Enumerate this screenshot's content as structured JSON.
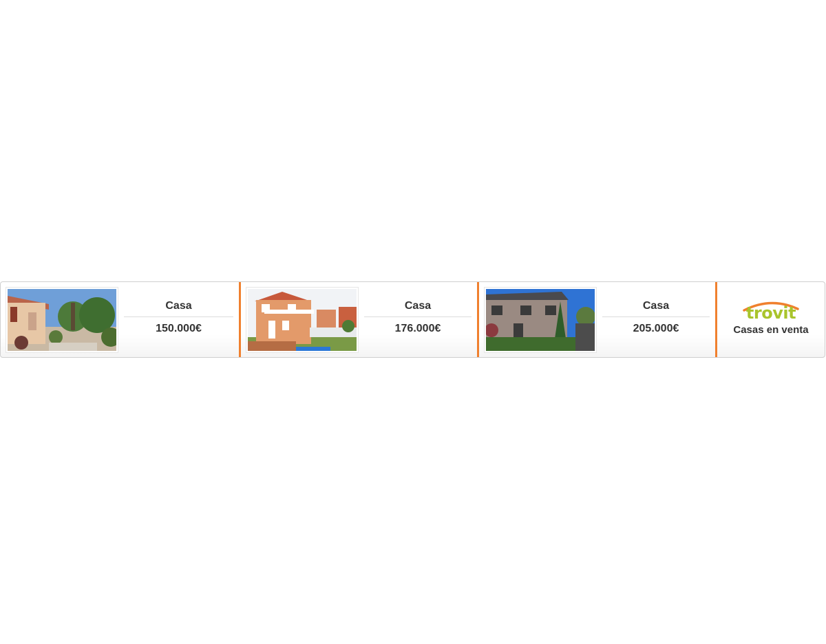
{
  "listings": [
    {
      "type": "Casa",
      "price": "150.000€",
      "photo": "house-photo-1"
    },
    {
      "type": "Casa",
      "price": "176.000€",
      "photo": "house-photo-2"
    },
    {
      "type": "Casa",
      "price": "205.000€",
      "photo": "house-photo-3"
    }
  ],
  "brand": {
    "logo_text": "trovit",
    "tagline": "Casas en venta"
  },
  "colors": {
    "accent": "#f0802e",
    "logo_green": "#a9c42c",
    "text": "#333333"
  }
}
